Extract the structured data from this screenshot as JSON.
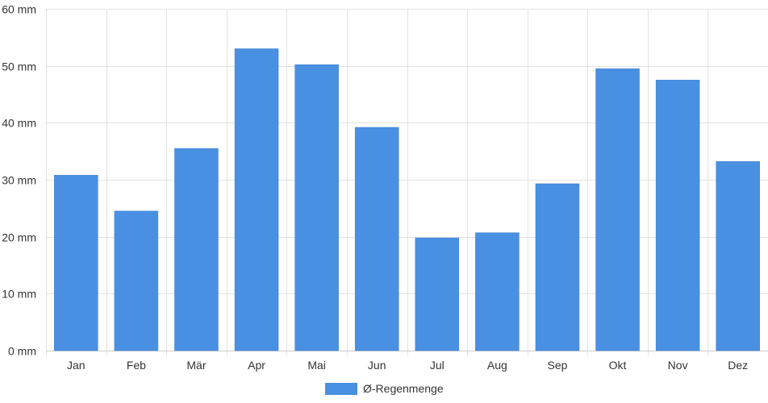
{
  "chart_data": {
    "type": "bar",
    "title": "",
    "xlabel": "",
    "ylabel": "",
    "categories": [
      "Jan",
      "Feb",
      "Mär",
      "Apr",
      "Mai",
      "Jun",
      "Jul",
      "Aug",
      "Sep",
      "Okt",
      "Nov",
      "Dez"
    ],
    "series": [
      {
        "name": "Ø-Regenmenge",
        "values": [
          30.8,
          24.5,
          35.5,
          53.0,
          50.2,
          39.2,
          19.8,
          20.7,
          29.3,
          49.5,
          47.5,
          33.2
        ],
        "color": "#4a90e2"
      }
    ],
    "ylim": [
      0,
      60
    ],
    "yticks": [
      0,
      10,
      20,
      30,
      40,
      50,
      60
    ],
    "ytick_labels": [
      "0 mm",
      "10 mm",
      "20 mm",
      "30 mm",
      "40 mm",
      "50 mm",
      "60 mm"
    ],
    "grid": true,
    "legend_position": "bottom-center"
  }
}
